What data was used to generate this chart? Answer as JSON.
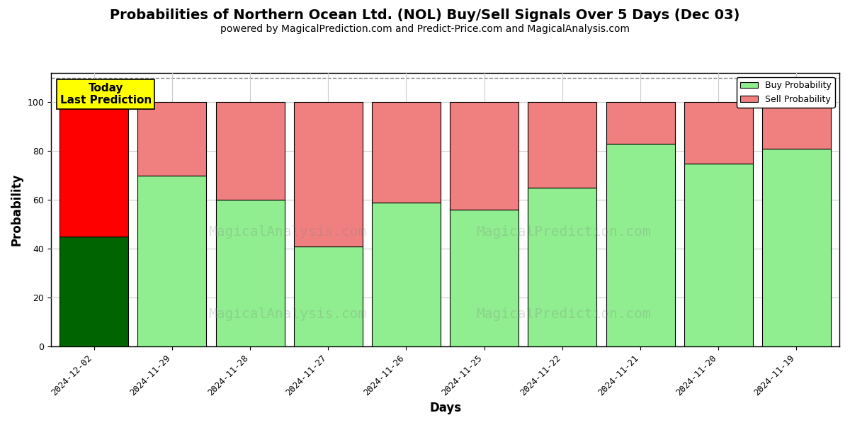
{
  "title": "Probabilities of Northern Ocean Ltd. (NOL) Buy/Sell Signals Over 5 Days (Dec 03)",
  "subtitle": "powered by MagicalPrediction.com and Predict-Price.com and MagicalAnalysis.com",
  "xlabel": "Days",
  "ylabel": "Probability",
  "categories": [
    "2024-12-02",
    "2024-11-29",
    "2024-11-28",
    "2024-11-27",
    "2024-11-26",
    "2024-11-25",
    "2024-11-22",
    "2024-11-21",
    "2024-11-20",
    "2024-11-19"
  ],
  "buy_values": [
    45,
    70,
    60,
    41,
    59,
    56,
    65,
    83,
    75,
    81
  ],
  "sell_values": [
    55,
    30,
    40,
    59,
    41,
    44,
    35,
    17,
    25,
    19
  ],
  "buy_colors": [
    "#006400",
    "#90EE90",
    "#90EE90",
    "#90EE90",
    "#90EE90",
    "#90EE90",
    "#90EE90",
    "#90EE90",
    "#90EE90",
    "#90EE90"
  ],
  "sell_colors": [
    "#FF0000",
    "#F08080",
    "#F08080",
    "#F08080",
    "#F08080",
    "#F08080",
    "#F08080",
    "#F08080",
    "#F08080",
    "#F08080"
  ],
  "ylim": [
    0,
    112
  ],
  "dashed_line_y": 110,
  "legend_buy_color": "#90EE90",
  "legend_sell_color": "#F08080",
  "today_box_color": "yellow",
  "today_box_text": "Today\nLast Prediction",
  "background_color": "#ffffff",
  "grid_color": "#cccccc",
  "bar_edge_color": "black",
  "bar_edge_width": 0.8,
  "title_fontsize": 14,
  "subtitle_fontsize": 10,
  "axis_label_fontsize": 12,
  "tick_fontsize": 9,
  "bar_width": 0.88,
  "watermark1": "MagicalAnalysis.com",
  "watermark2": "MagicalPrediction.com"
}
